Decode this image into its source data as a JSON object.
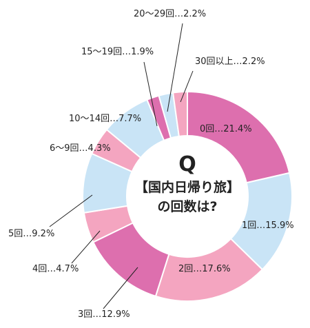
{
  "chart_data": {
    "type": "pie",
    "style": "donut",
    "center_badge": "Q",
    "center_title": "【国内日帰り旅】",
    "center_subtitle": "の回数は?",
    "slices": [
      {
        "label": "0回",
        "value": 21.4,
        "text": "0回…21.4%",
        "color": "#dd6fae"
      },
      {
        "label": "1回",
        "value": 15.9,
        "text": "1回…15.9%",
        "color": "#c9e4f6"
      },
      {
        "label": "2回",
        "value": 17.6,
        "text": "2回…17.6%",
        "color": "#f4a5c0"
      },
      {
        "label": "3回",
        "value": 12.9,
        "text": "3回…12.9%",
        "color": "#dd6fae"
      },
      {
        "label": "4回",
        "value": 4.7,
        "text": "4回…4.7%",
        "color": "#f4a5c0"
      },
      {
        "label": "5回",
        "value": 9.2,
        "text": "5回…9.2%",
        "color": "#c9e4f6"
      },
      {
        "label": "6〜9回",
        "value": 4.3,
        "text": "6〜9回…4.3%",
        "color": "#f4a5c0"
      },
      {
        "label": "10〜14回",
        "value": 7.7,
        "text": "10〜14回…7.7%",
        "color": "#c9e4f6"
      },
      {
        "label": "15〜19回",
        "value": 1.9,
        "text": "15〜19回…1.9%",
        "color": "#dd6fae"
      },
      {
        "label": "20〜29回",
        "value": 2.2,
        "text": "20〜29回…2.2%",
        "color": "#c9e4f6"
      },
      {
        "label": "30回以上",
        "value": 2.2,
        "text": "30回以上…2.2%",
        "color": "#f4a5c0"
      }
    ],
    "badge_color": "#2aa6df"
  }
}
